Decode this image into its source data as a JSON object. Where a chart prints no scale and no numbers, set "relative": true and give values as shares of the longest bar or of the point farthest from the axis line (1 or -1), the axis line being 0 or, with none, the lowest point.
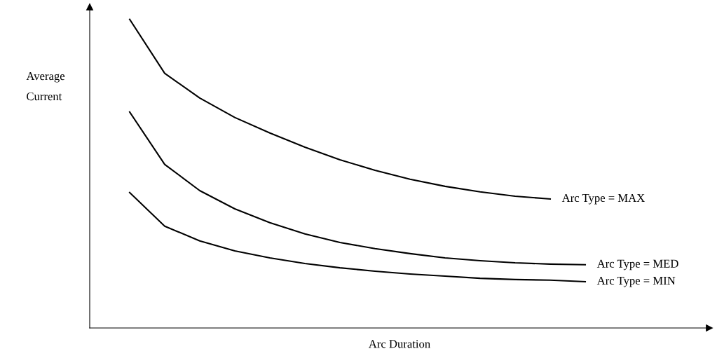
{
  "chart_data": {
    "type": "line",
    "relative": true,
    "xlabel": "Arc Duration",
    "ylabel": "Average\nCurrent",
    "categories": [
      null,
      null,
      null,
      null,
      null,
      null,
      null,
      null,
      null,
      null,
      null,
      null,
      null,
      null
    ],
    "series": [
      {
        "name": "Arc Type = MAX",
        "color": "#000000",
        "values": [
          1.0,
          0.825,
          0.745,
          0.682,
          0.632,
          0.586,
          0.545,
          0.511,
          0.482,
          0.459,
          0.441,
          0.427,
          0.418,
          null
        ]
      },
      {
        "name": "Arc Type = MED",
        "color": "#000000",
        "values": [
          0.7,
          0.53,
          0.445,
          0.386,
          0.341,
          0.305,
          0.277,
          0.257,
          0.241,
          0.227,
          0.218,
          0.211,
          0.207,
          0.205
        ]
      },
      {
        "name": "Arc Type = MIN",
        "color": "#000000",
        "values": [
          0.439,
          0.33,
          0.282,
          0.25,
          0.227,
          0.209,
          0.195,
          0.184,
          0.175,
          0.168,
          0.161,
          0.157,
          0.155,
          0.15
        ]
      }
    ],
    "legend": false,
    "marker": "none",
    "line_style": "solid",
    "tick_labels": false
  }
}
